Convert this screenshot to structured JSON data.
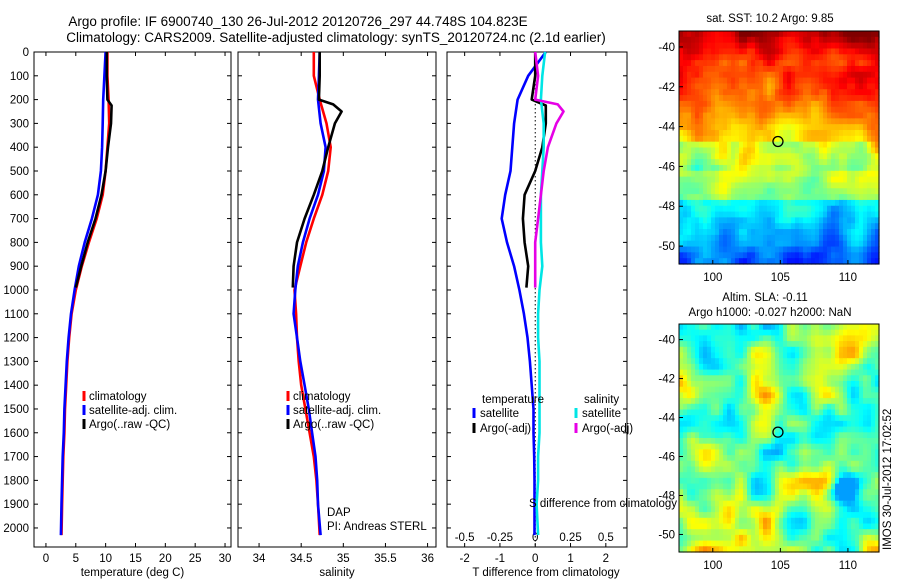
{
  "header": {
    "line1": "Argo profile: IF 6900740_130 26-Jul-2012 20120726_297 44.748S 104.823E",
    "line2": "Climatology: CARS2009. Satellite-adjusted climatology: synTS_20120724.nc (2.1d earlier)"
  },
  "colors": {
    "climatology": "#ff0000",
    "satellite": "#0000ff",
    "argo": "#000000",
    "satellite_s": "#00e5e5",
    "argo_s": "#e600e6"
  },
  "chart_data": [
    {
      "id": "temperature",
      "type": "line",
      "xlabel": "temperature (deg C)",
      "ylabel": "",
      "xlim": [
        -2,
        31
      ],
      "ylim": [
        2080,
        0
      ],
      "xticks": [
        0,
        5,
        10,
        15,
        20,
        25,
        30
      ],
      "yticks": [
        0,
        100,
        200,
        300,
        400,
        500,
        600,
        700,
        800,
        900,
        1000,
        1100,
        1200,
        1300,
        1400,
        1500,
        1600,
        1700,
        1800,
        1900,
        2000
      ],
      "legend": {
        "entries": [
          "climatology",
          "satellite-adj. clim.",
          "Argo(..raw -QC)"
        ],
        "placement": "lower-right"
      },
      "series": [
        {
          "name": "climatology",
          "color": "#ff0000",
          "points": [
            [
              10.3,
              0
            ],
            [
              10.3,
              100
            ],
            [
              10.5,
              200
            ],
            [
              10.6,
              300
            ],
            [
              10.3,
              400
            ],
            [
              10.0,
              500
            ],
            [
              9.5,
              600
            ],
            [
              8.5,
              700
            ],
            [
              7.2,
              800
            ],
            [
              6.0,
              900
            ],
            [
              5.0,
              1000
            ],
            [
              4.3,
              1100
            ],
            [
              3.9,
              1200
            ],
            [
              3.6,
              1300
            ],
            [
              3.4,
              1400
            ],
            [
              3.2,
              1500
            ],
            [
              3.1,
              1600
            ],
            [
              2.9,
              1700
            ],
            [
              2.8,
              1800
            ],
            [
              2.7,
              1900
            ],
            [
              2.6,
              2030
            ]
          ]
        },
        {
          "name": "satellite-adj. clim.",
          "color": "#0000ff",
          "points": [
            [
              10.0,
              0
            ],
            [
              9.8,
              100
            ],
            [
              9.6,
              200
            ],
            [
              9.5,
              300
            ],
            [
              9.4,
              400
            ],
            [
              9.2,
              500
            ],
            [
              8.7,
              600
            ],
            [
              7.7,
              700
            ],
            [
              6.5,
              800
            ],
            [
              5.5,
              900
            ],
            [
              4.8,
              1000
            ],
            [
              4.2,
              1100
            ],
            [
              3.8,
              1200
            ],
            [
              3.5,
              1300
            ],
            [
              3.3,
              1400
            ],
            [
              3.1,
              1500
            ],
            [
              3.0,
              1600
            ],
            [
              2.8,
              1700
            ],
            [
              2.7,
              1800
            ],
            [
              2.6,
              1900
            ],
            [
              2.5,
              2030
            ]
          ]
        },
        {
          "name": "Argo(..raw -QC)",
          "color": "#000000",
          "points": [
            [
              10.2,
              0
            ],
            [
              10.2,
              100
            ],
            [
              10.3,
              200
            ],
            [
              11.0,
              225
            ],
            [
              10.9,
              300
            ],
            [
              10.4,
              400
            ],
            [
              10.0,
              500
            ],
            [
              9.3,
              600
            ],
            [
              8.3,
              700
            ],
            [
              7.0,
              800
            ],
            [
              5.9,
              900
            ],
            [
              5.0,
              990
            ]
          ]
        }
      ]
    },
    {
      "id": "salinity",
      "type": "line",
      "xlabel": "salinity",
      "ylabel": "",
      "xlim": [
        33.75,
        36.1
      ],
      "ylim": [
        2080,
        0
      ],
      "xticks": [
        34,
        34.5,
        35,
        35.5,
        36
      ],
      "xticklabels": [
        "34",
        "34.5",
        "35",
        "35.5",
        "36"
      ],
      "yticks": [],
      "legend": {
        "entries": [
          "climatology",
          "satellite-adj. clim.",
          "Argo(..raw -QC)"
        ],
        "placement": "lower-right"
      },
      "annotation": {
        "line1": "DAP",
        "line2": "PI: Andreas STERL"
      },
      "series": [
        {
          "name": "climatology",
          "color": "#ff0000",
          "points": [
            [
              34.65,
              0
            ],
            [
              34.65,
              100
            ],
            [
              34.72,
              200
            ],
            [
              34.8,
              300
            ],
            [
              34.85,
              400
            ],
            [
              34.82,
              500
            ],
            [
              34.75,
              600
            ],
            [
              34.65,
              700
            ],
            [
              34.56,
              800
            ],
            [
              34.49,
              900
            ],
            [
              34.42,
              1000
            ],
            [
              34.44,
              1100
            ],
            [
              34.45,
              1200
            ],
            [
              34.47,
              1300
            ],
            [
              34.5,
              1400
            ],
            [
              34.55,
              1500
            ],
            [
              34.6,
              1600
            ],
            [
              34.65,
              1700
            ],
            [
              34.68,
              1800
            ],
            [
              34.7,
              1900
            ],
            [
              34.72,
              2030
            ]
          ]
        },
        {
          "name": "satellite-adj. clim.",
          "color": "#0000ff",
          "points": [
            [
              34.72,
              0
            ],
            [
              34.71,
              100
            ],
            [
              34.7,
              200
            ],
            [
              34.73,
              300
            ],
            [
              34.79,
              400
            ],
            [
              34.77,
              500
            ],
            [
              34.7,
              600
            ],
            [
              34.6,
              700
            ],
            [
              34.52,
              800
            ],
            [
              34.46,
              900
            ],
            [
              34.43,
              1000
            ],
            [
              34.41,
              1100
            ],
            [
              34.45,
              1200
            ],
            [
              34.49,
              1300
            ],
            [
              34.54,
              1400
            ],
            [
              34.59,
              1500
            ],
            [
              34.63,
              1600
            ],
            [
              34.67,
              1700
            ],
            [
              34.69,
              1800
            ],
            [
              34.7,
              1900
            ],
            [
              34.73,
              2030
            ]
          ]
        },
        {
          "name": "Argo(..raw -QC)",
          "color": "#000000",
          "points": [
            [
              34.72,
              0
            ],
            [
              34.72,
              100
            ],
            [
              34.71,
              200
            ],
            [
              34.88,
              220
            ],
            [
              34.98,
              250
            ],
            [
              34.9,
              300
            ],
            [
              34.82,
              400
            ],
            [
              34.75,
              500
            ],
            [
              34.65,
              600
            ],
            [
              34.54,
              700
            ],
            [
              34.45,
              800
            ],
            [
              34.41,
              900
            ],
            [
              34.4,
              990
            ]
          ]
        }
      ]
    },
    {
      "id": "difference",
      "type": "line",
      "xlabel": "T difference from climatology",
      "x2label": "S difference from climatology",
      "xlim": [
        -2.5,
        2.6
      ],
      "ylim": [
        2080,
        0
      ],
      "xticks": [
        -2,
        -1,
        0,
        1,
        2
      ],
      "xticklabels": [
        "-2",
        "-1",
        "0",
        "1",
        "2"
      ],
      "x2ticks": [
        -0.5,
        -0.25,
        0,
        0.25,
        0.5
      ],
      "x2ticklabels": [
        "-0.5",
        "-0.25",
        "0",
        "0.25",
        "0.5"
      ],
      "x2lim": [
        -0.625,
        0.65
      ],
      "yticks": [],
      "legend": {
        "entries": [
          "temperature",
          "satellite",
          "Argo(-adj)",
          "salinity",
          "satellite",
          "Argo(-adj)"
        ],
        "placement": "lower-center"
      },
      "series": [
        {
          "name": "temperature satellite",
          "color": "#0000ff",
          "axis": "T",
          "points": [
            [
              0.3,
              0
            ],
            [
              -0.2,
              100
            ],
            [
              -0.5,
              200
            ],
            [
              -0.6,
              300
            ],
            [
              -0.65,
              400
            ],
            [
              -0.7,
              500
            ],
            [
              -0.85,
              600
            ],
            [
              -0.95,
              700
            ],
            [
              -0.8,
              800
            ],
            [
              -0.6,
              900
            ],
            [
              -0.45,
              1000
            ],
            [
              -0.32,
              1100
            ],
            [
              -0.22,
              1200
            ],
            [
              -0.15,
              1300
            ],
            [
              -0.1,
              1400
            ],
            [
              -0.05,
              1500
            ],
            [
              -0.05,
              1600
            ],
            [
              -0.03,
              1700
            ],
            [
              -0.02,
              1800
            ],
            [
              -0.02,
              1900
            ],
            [
              -0.02,
              2030
            ]
          ]
        },
        {
          "name": "temperature Argo(-adj)",
          "color": "#000000",
          "axis": "T",
          "points": [
            [
              0.0,
              0
            ],
            [
              0.0,
              100
            ],
            [
              -0.1,
              200
            ],
            [
              0.3,
              225
            ],
            [
              0.3,
              300
            ],
            [
              0.2,
              400
            ],
            [
              0.0,
              500
            ],
            [
              -0.3,
              600
            ],
            [
              -0.35,
              700
            ],
            [
              -0.3,
              800
            ],
            [
              -0.2,
              900
            ],
            [
              -0.25,
              990
            ]
          ]
        },
        {
          "name": "salinity satellite",
          "color": "#00e5e5",
          "axis": "S",
          "points": [
            [
              0.07,
              0
            ],
            [
              0.05,
              100
            ],
            [
              0.04,
              200
            ],
            [
              0.06,
              300
            ],
            [
              0.06,
              400
            ],
            [
              0.05,
              500
            ],
            [
              0.04,
              600
            ],
            [
              0.04,
              700
            ],
            [
              0.04,
              800
            ],
            [
              0.05,
              900
            ],
            [
              0.03,
              1000
            ],
            [
              0.02,
              1100
            ],
            [
              0.02,
              1200
            ],
            [
              0.03,
              1300
            ],
            [
              0.03,
              1400
            ],
            [
              0.03,
              1500
            ],
            [
              0.03,
              1600
            ],
            [
              0.02,
              1700
            ],
            [
              0.02,
              1800
            ],
            [
              0.01,
              1900
            ],
            [
              0.02,
              2030
            ]
          ]
        },
        {
          "name": "salinity Argo(-adj)",
          "color": "#e600e6",
          "axis": "S",
          "points": [
            [
              0.0,
              0
            ],
            [
              0.02,
              100
            ],
            [
              0.0,
              200
            ],
            [
              0.16,
              220
            ],
            [
              0.2,
              250
            ],
            [
              0.15,
              300
            ],
            [
              0.09,
              400
            ],
            [
              0.06,
              500
            ],
            [
              0.04,
              600
            ],
            [
              0.02,
              700
            ],
            [
              0.0,
              800
            ],
            [
              0.0,
              900
            ],
            [
              0.0,
              990
            ]
          ]
        }
      ]
    },
    {
      "id": "sst_map",
      "type": "heatmap",
      "title": "sat. SST: 10.2  Argo: 9.85",
      "xlim": [
        97.5,
        112.3
      ],
      "ylim": [
        -50.9,
        -39.2
      ],
      "xticks": [
        100,
        105,
        110
      ],
      "yticks": [
        -40,
        -42,
        -44,
        -46,
        -48,
        -50
      ],
      "marker": {
        "lon": 104.823,
        "lat": -44.748
      }
    },
    {
      "id": "sla_map",
      "type": "heatmap",
      "title": "Altim. SLA: -0.11",
      "subtitle": "Argo h1000: -0.027 h2000: NaN",
      "xlim": [
        97.5,
        112.3
      ],
      "ylim": [
        -50.9,
        -39.2
      ],
      "xticks": [
        100,
        105,
        110
      ],
      "yticks": [
        -40,
        -42,
        -44,
        -46,
        -48,
        -50
      ],
      "marker": {
        "lon": 104.823,
        "lat": -44.748
      }
    }
  ],
  "footer": {
    "stamp": "IMOS 30-Jul-2012 17:02:52"
  }
}
